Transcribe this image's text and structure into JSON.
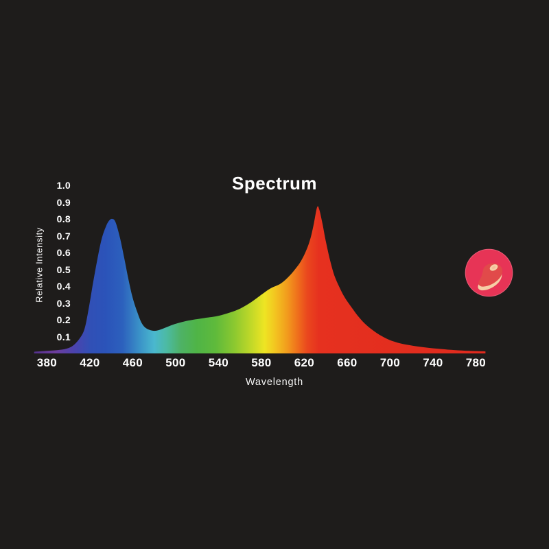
{
  "page": {
    "background": "#1e1c1b",
    "text_color": "#ffffff"
  },
  "chart_data": {
    "type": "area",
    "title": "Spectrum",
    "xlabel": "Wavelength",
    "ylabel": "Relative Intensity",
    "grid": false,
    "legend": "none",
    "xlim": [
      365,
      790
    ],
    "ylim": [
      0,
      1.0
    ],
    "x_ticks": [
      "380",
      "420",
      "460",
      "500",
      "540",
      "580",
      "620",
      "660",
      "700",
      "740",
      "780"
    ],
    "y_ticks": [
      "1.0",
      "0.9",
      "0.8",
      "0.7",
      "0.6",
      "0.5",
      "0.4",
      "0.3",
      "0.2",
      "0.1"
    ],
    "features": {
      "blue_peak": {
        "wavelength": 441,
        "intensity": 0.8
      },
      "dip": {
        "wavelength": 478,
        "intensity": 0.135
      },
      "red_peak": {
        "wavelength": 632,
        "intensity": 0.87
      }
    },
    "points": [
      [
        368,
        0.01
      ],
      [
        380,
        0.015
      ],
      [
        390,
        0.02
      ],
      [
        398,
        0.028
      ],
      [
        404,
        0.045
      ],
      [
        410,
        0.085
      ],
      [
        415,
        0.145
      ],
      [
        419,
        0.27
      ],
      [
        423,
        0.42
      ],
      [
        427,
        0.56
      ],
      [
        431,
        0.68
      ],
      [
        435,
        0.755
      ],
      [
        438,
        0.79
      ],
      [
        441,
        0.8
      ],
      [
        444,
        0.78
      ],
      [
        448,
        0.69
      ],
      [
        452,
        0.57
      ],
      [
        456,
        0.44
      ],
      [
        460,
        0.33
      ],
      [
        464,
        0.25
      ],
      [
        468,
        0.185
      ],
      [
        472,
        0.152
      ],
      [
        477,
        0.137
      ],
      [
        482,
        0.135
      ],
      [
        488,
        0.147
      ],
      [
        494,
        0.162
      ],
      [
        500,
        0.176
      ],
      [
        508,
        0.19
      ],
      [
        516,
        0.2
      ],
      [
        526,
        0.21
      ],
      [
        538,
        0.221
      ],
      [
        548,
        0.238
      ],
      [
        558,
        0.26
      ],
      [
        568,
        0.295
      ],
      [
        578,
        0.34
      ],
      [
        588,
        0.385
      ],
      [
        598,
        0.415
      ],
      [
        606,
        0.46
      ],
      [
        612,
        0.505
      ],
      [
        617,
        0.55
      ],
      [
        622,
        0.615
      ],
      [
        626,
        0.69
      ],
      [
        629,
        0.775
      ],
      [
        632,
        0.87
      ],
      [
        634,
        0.855
      ],
      [
        637,
        0.77
      ],
      [
        640,
        0.67
      ],
      [
        644,
        0.555
      ],
      [
        648,
        0.465
      ],
      [
        653,
        0.39
      ],
      [
        658,
        0.33
      ],
      [
        664,
        0.275
      ],
      [
        671,
        0.215
      ],
      [
        678,
        0.168
      ],
      [
        686,
        0.128
      ],
      [
        694,
        0.097
      ],
      [
        702,
        0.074
      ],
      [
        712,
        0.056
      ],
      [
        724,
        0.043
      ],
      [
        736,
        0.033
      ],
      [
        748,
        0.026
      ],
      [
        760,
        0.02
      ],
      [
        774,
        0.015
      ],
      [
        789,
        0.012
      ]
    ],
    "gradient_stops": [
      {
        "wavelength": 365,
        "color": "#53308c"
      },
      {
        "wavelength": 385,
        "color": "#6d3d9c"
      },
      {
        "wavelength": 403,
        "color": "#4b43ae"
      },
      {
        "wavelength": 418,
        "color": "#3150b6"
      },
      {
        "wavelength": 432,
        "color": "#2b53b9"
      },
      {
        "wavelength": 448,
        "color": "#2c60bd"
      },
      {
        "wavelength": 465,
        "color": "#3b94c8"
      },
      {
        "wavelength": 478,
        "color": "#4ab8ce"
      },
      {
        "wavelength": 490,
        "color": "#4cbaa2"
      },
      {
        "wavelength": 503,
        "color": "#4eb266"
      },
      {
        "wavelength": 518,
        "color": "#4fb447"
      },
      {
        "wavelength": 536,
        "color": "#5fba3b"
      },
      {
        "wavelength": 553,
        "color": "#8ac830"
      },
      {
        "wavelength": 570,
        "color": "#c3d928"
      },
      {
        "wavelength": 582,
        "color": "#eee523"
      },
      {
        "wavelength": 593,
        "color": "#f3c120"
      },
      {
        "wavelength": 603,
        "color": "#f29d1d"
      },
      {
        "wavelength": 613,
        "color": "#ef701c"
      },
      {
        "wavelength": 622,
        "color": "#ea481e"
      },
      {
        "wavelength": 633,
        "color": "#e6311f"
      },
      {
        "wavelength": 790,
        "color": "#df2a1e"
      }
    ]
  },
  "icon_badge": {
    "name": "steak",
    "circle_color": "#e73456",
    "rim_color": "#f08ca0",
    "meat_color": "#e14a4a",
    "fat_color": "#f6cfa6",
    "marbling_color": "#f2bd9b"
  }
}
